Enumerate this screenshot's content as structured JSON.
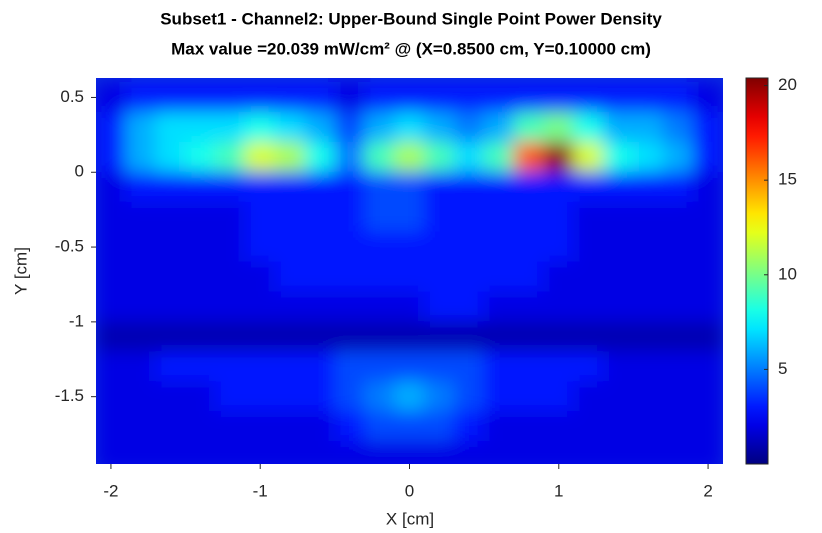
{
  "chart_data": {
    "type": "heatmap",
    "title": "Subset1 - Channel2: Upper-Bound Single Point Power Density",
    "subtitle": "Max value =20.039 mW/cm² @ (X=0.8500 cm, Y=0.10000 cm)",
    "x_label": "X [cm]",
    "y_label": "Y [cm]",
    "colormap": "jet",
    "x": [
      -2,
      -1.8,
      -1.6,
      -1.4,
      -1.2,
      -1,
      -0.8,
      -0.6,
      -0.4,
      -0.2,
      0,
      0.2,
      0.4,
      0.6,
      0.8,
      1,
      1.2,
      1.4,
      1.6,
      1.8,
      2
    ],
    "y": [
      0.5,
      0.3,
      0.1,
      -0.1,
      -0.3,
      -0.5,
      -0.7,
      -0.9,
      -1.1,
      -1.3,
      -1.5,
      -1.7,
      -1.9
    ],
    "values": [
      [
        2,
        3,
        3,
        3,
        3,
        3,
        3,
        3,
        2,
        3,
        3,
        3,
        3,
        3,
        3,
        3,
        3,
        3,
        3,
        3,
        2
      ],
      [
        3,
        6,
        7,
        7,
        7,
        8,
        7,
        6,
        4,
        6,
        7,
        6,
        5,
        6,
        9,
        10,
        8,
        6,
        6,
        5,
        3
      ],
      [
        3,
        6,
        7,
        8,
        9,
        12,
        11,
        8,
        5,
        9,
        11,
        9,
        7,
        9,
        16,
        20,
        12,
        8,
        7,
        6,
        3
      ],
      [
        2,
        3,
        3,
        3,
        3,
        3,
        3,
        3,
        3,
        4,
        4,
        3,
        3,
        3,
        3,
        3,
        3,
        3,
        3,
        3,
        2
      ],
      [
        2,
        2,
        2,
        2,
        2,
        3,
        3,
        3,
        3,
        4,
        4,
        3,
        3,
        3,
        3,
        3,
        2,
        2,
        2,
        2,
        2
      ],
      [
        2,
        2,
        2,
        2,
        2,
        3,
        3,
        3,
        3,
        3,
        3,
        3,
        3,
        3,
        3,
        3,
        2,
        2,
        2,
        2,
        2
      ],
      [
        2,
        2,
        2,
        2,
        2,
        2,
        3,
        3,
        3,
        3,
        3,
        3,
        3,
        3,
        3,
        2,
        2,
        2,
        2,
        2,
        2
      ],
      [
        2,
        2,
        2,
        2,
        2,
        2,
        2,
        2,
        2,
        2,
        2,
        3,
        3,
        2,
        2,
        2,
        2,
        2,
        2,
        2,
        2
      ],
      [
        1,
        1,
        1,
        1,
        1,
        1,
        1,
        1,
        1,
        1,
        1,
        1,
        1,
        1,
        1,
        1,
        1,
        1,
        1,
        1,
        1
      ],
      [
        2,
        2,
        3,
        3,
        3,
        3,
        3,
        3,
        4,
        4,
        4,
        4,
        4,
        3,
        3,
        3,
        3,
        2,
        2,
        2,
        2
      ],
      [
        2,
        2,
        2,
        2,
        3,
        3,
        3,
        3,
        4,
        5,
        6,
        5,
        4,
        3,
        3,
        3,
        2,
        2,
        2,
        2,
        2
      ],
      [
        2,
        2,
        2,
        2,
        2,
        2,
        2,
        2,
        3,
        4,
        4,
        4,
        3,
        2,
        2,
        2,
        2,
        2,
        2,
        2,
        2
      ],
      [
        2,
        2,
        2,
        2,
        2,
        2,
        2,
        2,
        2,
        2,
        2,
        2,
        2,
        2,
        2,
        2,
        2,
        2,
        2,
        2,
        2
      ]
    ],
    "xlim": [
      -2.1,
      2.1
    ],
    "ylim": [
      -1.95,
      0.63
    ],
    "xticks": [
      -2,
      -1,
      0,
      1,
      2
    ],
    "yticks": [
      0.5,
      0,
      -0.5,
      -1,
      -1.5
    ],
    "clim": [
      0,
      20.4
    ],
    "cticks": [
      5,
      10,
      15,
      20
    ]
  }
}
